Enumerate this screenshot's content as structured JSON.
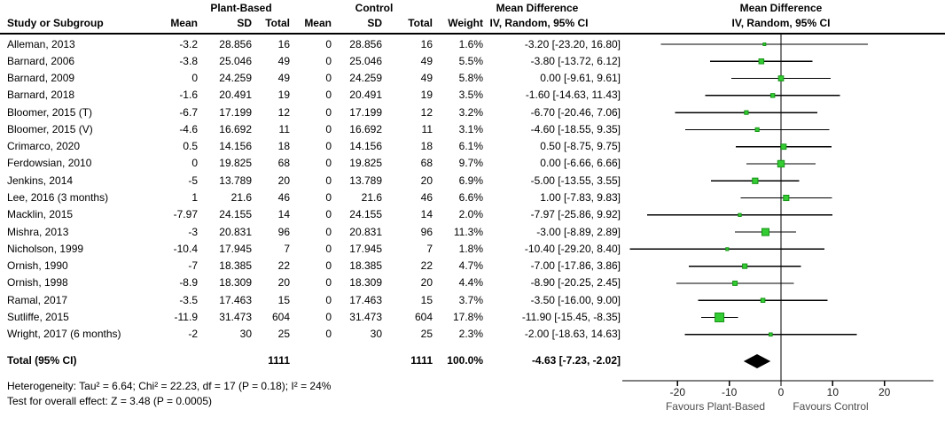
{
  "header": {
    "plant": "Plant-Based",
    "control": "Control",
    "md_text_col": "Mean Difference",
    "md_plot_col": "Mean Difference",
    "study": "Study or Subgroup",
    "mean": "Mean",
    "sd": "SD",
    "total": "Total",
    "mean2": "Mean",
    "sd2": "SD",
    "total2": "Total",
    "weight": "Weight",
    "ci": "IV, Random, 95% CI",
    "ci_plot": "IV, Random, 95% CI"
  },
  "footer": {
    "heterogeneity": "Heterogeneity: Tau² = 6.64; Chi² = 22.23, df = 17 (P = 0.18); I² = 24%",
    "overall_effect": "Test for overall effect: Z = 3.48 (P = 0.0005)"
  },
  "colors": {
    "marker": "#33CC33",
    "marker_border": "#169416",
    "ci_line": "#000000",
    "zero_line": "#7F7F7F",
    "axis": "#000000",
    "diamond": "#000000"
  },
  "chart_data": {
    "type": "scatter",
    "subtype": "forest-plot",
    "title": "Mean Difference, IV, Random, 95% CI — Plant-Based vs Control",
    "axis": {
      "ticks": [
        -20,
        -10,
        0,
        10,
        20
      ],
      "xlim": [
        -30.7,
        29.5
      ],
      "favours_left": "Favours Plant-Based",
      "favours_right": "Favours Control"
    },
    "studies": [
      {
        "name": "Alleman, 2013",
        "mean": "-3.2",
        "sd": "28.856",
        "total": "16",
        "c_mean": "0",
        "c_sd": "28.856",
        "c_total": "16",
        "weight": "1.6%",
        "md": "-3.20 [-23.20, 16.80]",
        "est": -3.2,
        "lo": -23.2,
        "hi": 16.8,
        "w": 1.6
      },
      {
        "name": "Barnard, 2006",
        "mean": "-3.8",
        "sd": "25.046",
        "total": "49",
        "c_mean": "0",
        "c_sd": "25.046",
        "c_total": "49",
        "weight": "5.5%",
        "md": "-3.80 [-13.72, 6.12]",
        "est": -3.8,
        "lo": -13.72,
        "hi": 6.12,
        "w": 5.5
      },
      {
        "name": "Barnard, 2009",
        "mean": "0",
        "sd": "24.259",
        "total": "49",
        "c_mean": "0",
        "c_sd": "24.259",
        "c_total": "49",
        "weight": "5.8%",
        "md": "0.00 [-9.61, 9.61]",
        "est": 0,
        "lo": -9.61,
        "hi": 9.61,
        "w": 5.8
      },
      {
        "name": "Barnard, 2018",
        "mean": "-1.6",
        "sd": "20.491",
        "total": "19",
        "c_mean": "0",
        "c_sd": "20.491",
        "c_total": "19",
        "weight": "3.5%",
        "md": "-1.60 [-14.63, 11.43]",
        "est": -1.6,
        "lo": -14.63,
        "hi": 11.43,
        "w": 3.5
      },
      {
        "name": "Bloomer, 2015 (T)",
        "mean": "-6.7",
        "sd": "17.199",
        "total": "12",
        "c_mean": "0",
        "c_sd": "17.199",
        "c_total": "12",
        "weight": "3.2%",
        "md": "-6.70 [-20.46, 7.06]",
        "est": -6.7,
        "lo": -20.46,
        "hi": 7.06,
        "w": 3.2
      },
      {
        "name": "Bloomer, 2015 (V)",
        "mean": "-4.6",
        "sd": "16.692",
        "total": "11",
        "c_mean": "0",
        "c_sd": "16.692",
        "c_total": "11",
        "weight": "3.1%",
        "md": "-4.60 [-18.55, 9.35]",
        "est": -4.6,
        "lo": -18.55,
        "hi": 9.35,
        "w": 3.1
      },
      {
        "name": "Crimarco, 2020",
        "mean": "0.5",
        "sd": "14.156",
        "total": "18",
        "c_mean": "0",
        "c_sd": "14.156",
        "c_total": "18",
        "weight": "6.1%",
        "md": "0.50 [-8.75, 9.75]",
        "est": 0.5,
        "lo": -8.75,
        "hi": 9.75,
        "w": 6.1
      },
      {
        "name": "Ferdowsian, 2010",
        "mean": "0",
        "sd": "19.825",
        "total": "68",
        "c_mean": "0",
        "c_sd": "19.825",
        "c_total": "68",
        "weight": "9.7%",
        "md": "0.00 [-6.66, 6.66]",
        "est": 0,
        "lo": -6.66,
        "hi": 6.66,
        "w": 9.7
      },
      {
        "name": "Jenkins, 2014",
        "mean": "-5",
        "sd": "13.789",
        "total": "20",
        "c_mean": "0",
        "c_sd": "13.789",
        "c_total": "20",
        "weight": "6.9%",
        "md": "-5.00 [-13.55, 3.55]",
        "est": -5,
        "lo": -13.55,
        "hi": 3.55,
        "w": 6.9
      },
      {
        "name": "Lee, 2016 (3 months)",
        "mean": "1",
        "sd": "21.6",
        "total": "46",
        "c_mean": "0",
        "c_sd": "21.6",
        "c_total": "46",
        "weight": "6.6%",
        "md": "1.00 [-7.83, 9.83]",
        "est": 1,
        "lo": -7.83,
        "hi": 9.83,
        "w": 6.6
      },
      {
        "name": "Macklin, 2015",
        "mean": "-7.97",
        "sd": "24.155",
        "total": "14",
        "c_mean": "0",
        "c_sd": "24.155",
        "c_total": "14",
        "weight": "2.0%",
        "md": "-7.97 [-25.86, 9.92]",
        "est": -7.97,
        "lo": -25.86,
        "hi": 9.92,
        "w": 2.0
      },
      {
        "name": "Mishra, 2013",
        "mean": "-3",
        "sd": "20.831",
        "total": "96",
        "c_mean": "0",
        "c_sd": "20.831",
        "c_total": "96",
        "weight": "11.3%",
        "md": "-3.00 [-8.89, 2.89]",
        "est": -3,
        "lo": -8.89,
        "hi": 2.89,
        "w": 11.3
      },
      {
        "name": "Nicholson, 1999",
        "mean": "-10.4",
        "sd": "17.945",
        "total": "7",
        "c_mean": "0",
        "c_sd": "17.945",
        "c_total": "7",
        "weight": "1.8%",
        "md": "-10.40 [-29.20, 8.40]",
        "est": -10.4,
        "lo": -29.2,
        "hi": 8.4,
        "w": 1.8
      },
      {
        "name": "Ornish, 1990",
        "mean": "-7",
        "sd": "18.385",
        "total": "22",
        "c_mean": "0",
        "c_sd": "18.385",
        "c_total": "22",
        "weight": "4.7%",
        "md": "-7.00 [-17.86, 3.86]",
        "est": -7,
        "lo": -17.86,
        "hi": 3.86,
        "w": 4.7
      },
      {
        "name": "Ornish, 1998",
        "mean": "-8.9",
        "sd": "18.309",
        "total": "20",
        "c_mean": "0",
        "c_sd": "18.309",
        "c_total": "20",
        "weight": "4.4%",
        "md": "-8.90 [-20.25, 2.45]",
        "est": -8.9,
        "lo": -20.25,
        "hi": 2.45,
        "w": 4.4
      },
      {
        "name": "Ramal, 2017",
        "mean": "-3.5",
        "sd": "17.463",
        "total": "15",
        "c_mean": "0",
        "c_sd": "17.463",
        "c_total": "15",
        "weight": "3.7%",
        "md": "-3.50 [-16.00, 9.00]",
        "est": -3.5,
        "lo": -16.0,
        "hi": 9.0,
        "w": 3.7
      },
      {
        "name": "Sutliffe, 2015",
        "mean": "-11.9",
        "sd": "31.473",
        "total": "604",
        "c_mean": "0",
        "c_sd": "31.473",
        "c_total": "604",
        "weight": "17.8%",
        "md": "-11.90 [-15.45, -8.35]",
        "est": -11.9,
        "lo": -15.45,
        "hi": -8.35,
        "w": 17.8
      },
      {
        "name": "Wright, 2017 (6 months)",
        "mean": "-2",
        "sd": "30",
        "total": "25",
        "c_mean": "0",
        "c_sd": "30",
        "c_total": "25",
        "weight": "2.3%",
        "md": "-2.00 [-18.63, 14.63]",
        "est": -2,
        "lo": -18.63,
        "hi": 14.63,
        "w": 2.3
      }
    ],
    "total": {
      "label": "Total (95% CI)",
      "total": "1111",
      "c_total": "1111",
      "weight": "100.0%",
      "md": "-4.63 [-7.23, -2.02]",
      "est": -4.63,
      "lo": -7.23,
      "hi": -2.02
    }
  }
}
